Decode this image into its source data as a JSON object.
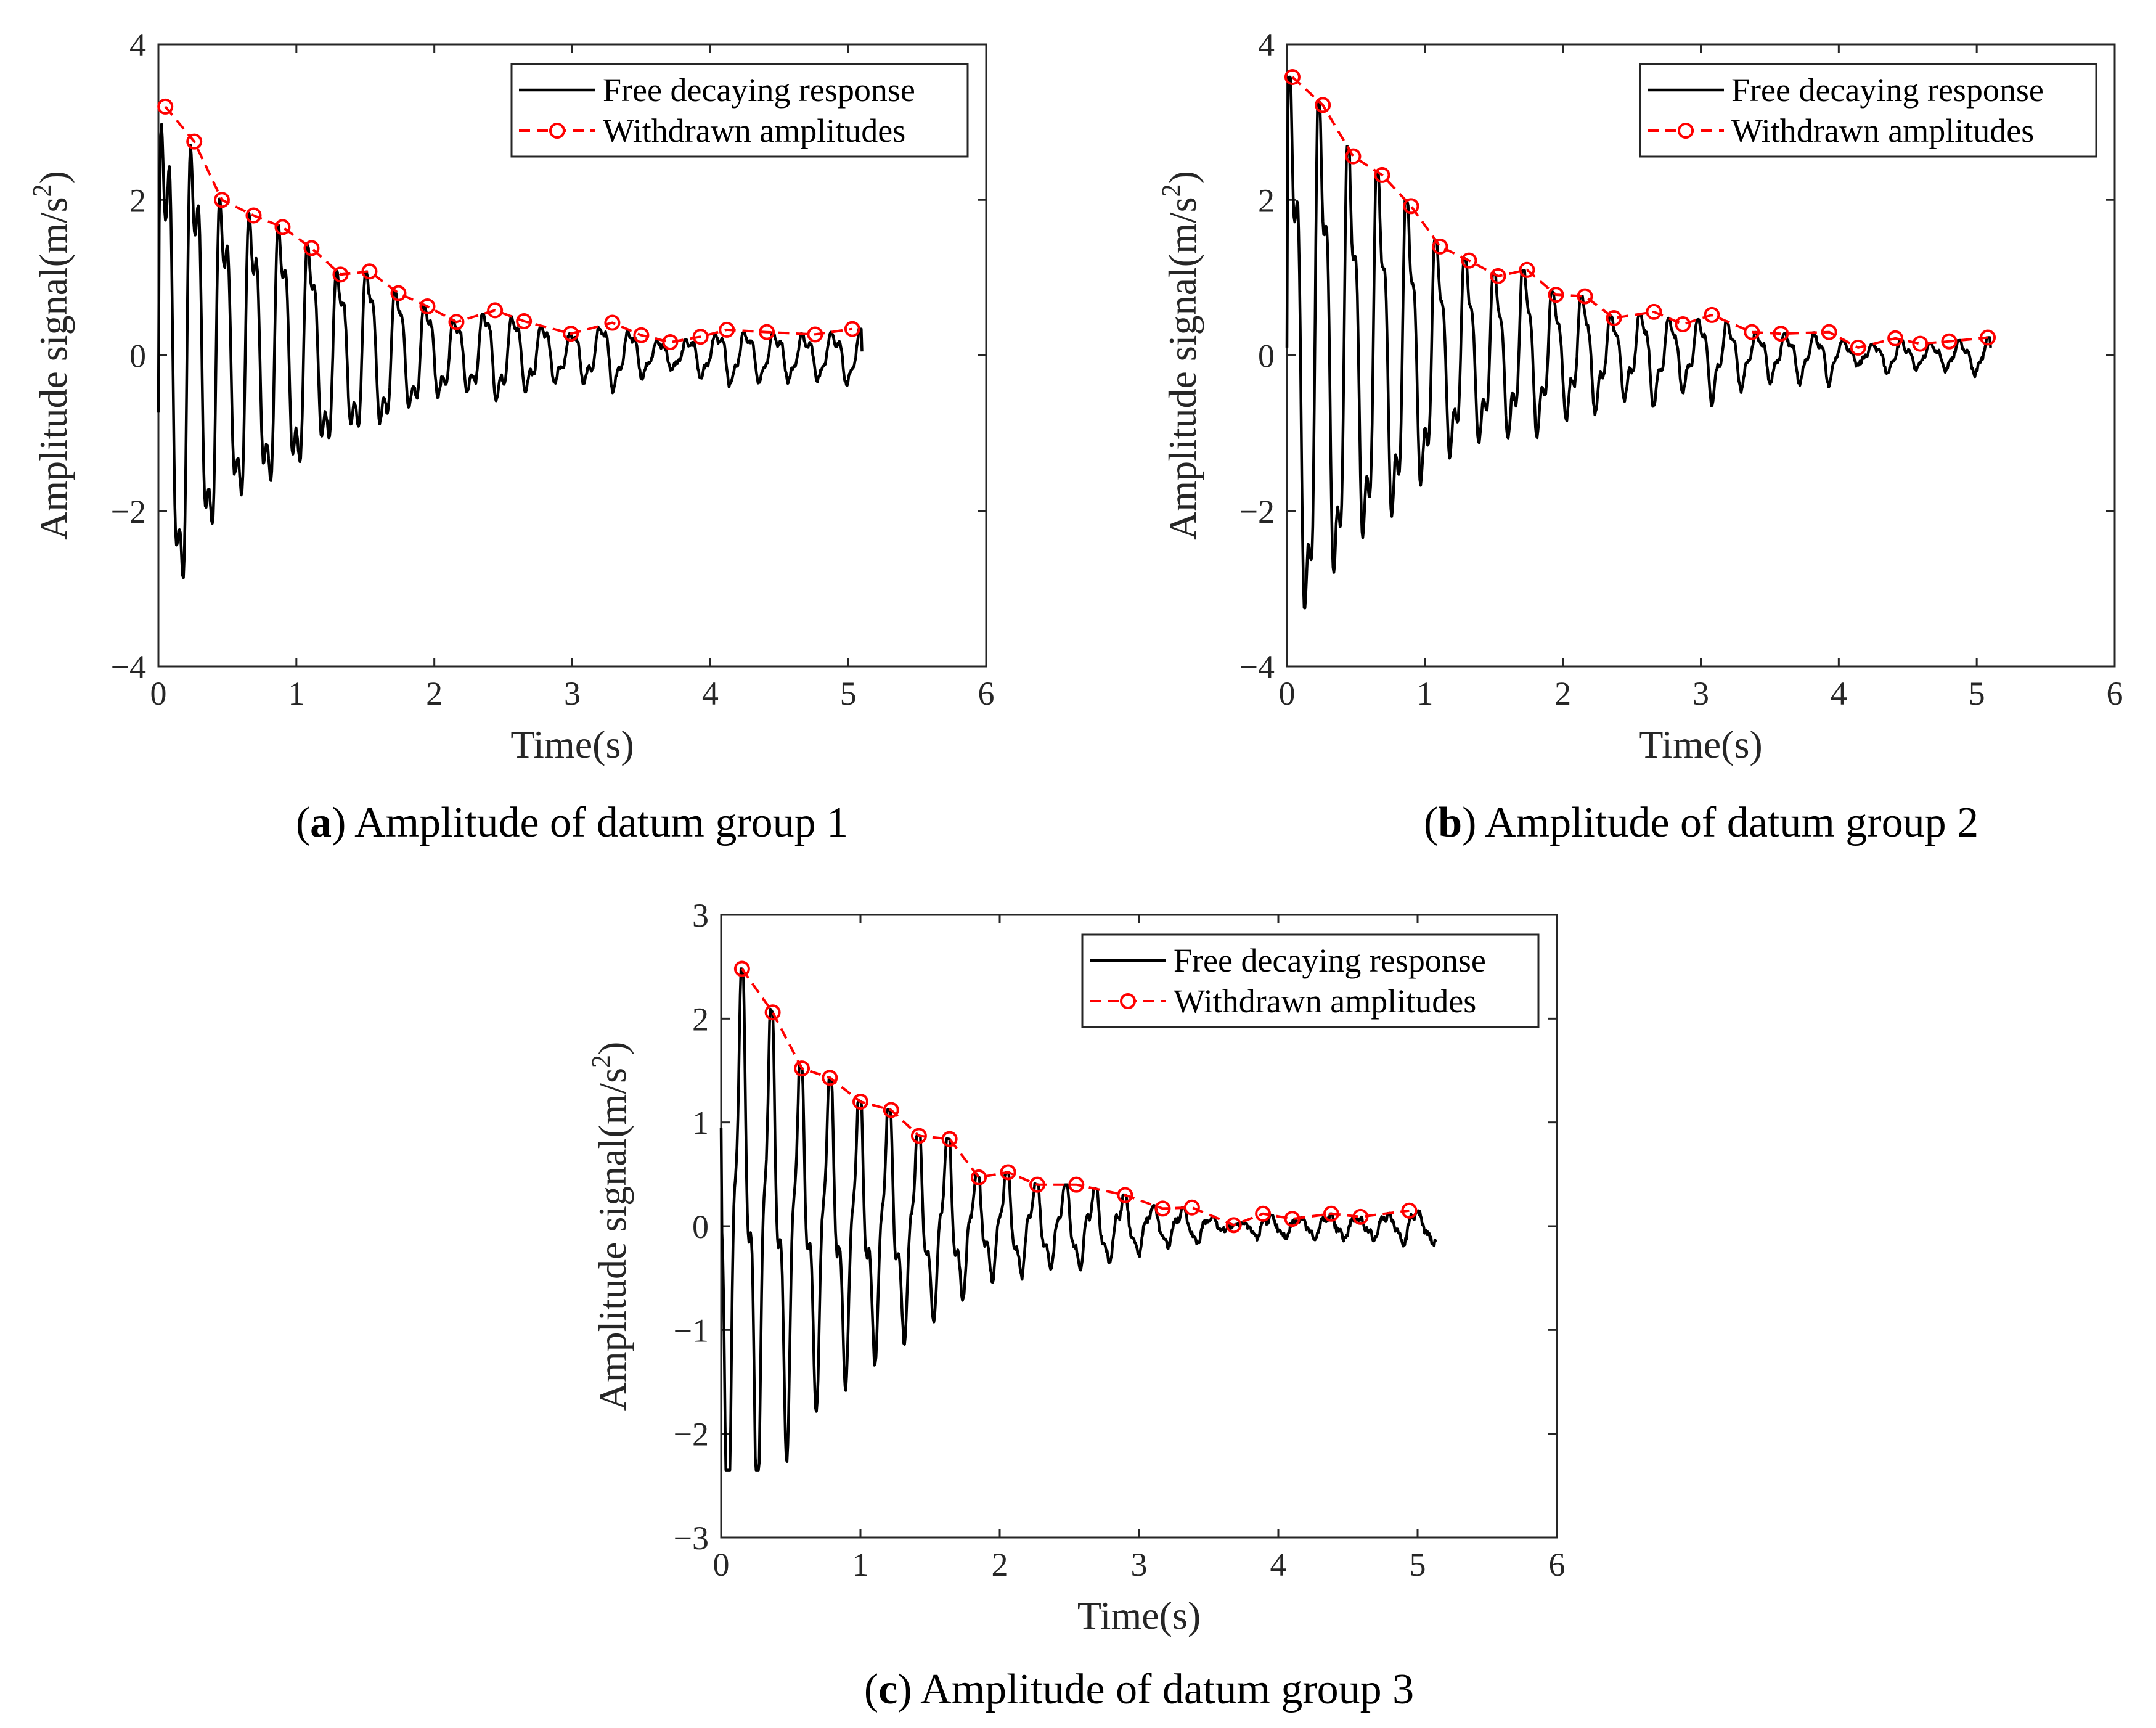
{
  "colors": {
    "response_line": "#000000",
    "amplitude_line": "#ff0000",
    "axis": "#262626",
    "background": "#ffffff"
  },
  "chart_data": [
    {
      "id": "a",
      "type": "line",
      "caption_letter": "a",
      "caption_text": "Amplitude of datum group 1",
      "xlabel": "Time(s)",
      "ylabel": "Amplitude signal(m/s",
      "ylabel_sup": "2",
      "ylabel_end": ")",
      "xlim": [
        0,
        6
      ],
      "ylim": [
        -4,
        4
      ],
      "xticks": [
        0,
        1,
        2,
        3,
        4,
        5,
        6
      ],
      "yticks": [
        -4,
        -2,
        0,
        2,
        4
      ],
      "xtick_labels": [
        "0",
        "1",
        "2",
        "3",
        "4",
        "5",
        "6"
      ],
      "ytick_labels": [
        "−4",
        "−2",
        "0",
        "2",
        "4"
      ],
      "legend": [
        "Free decaying response",
        "Withdrawn amplitudes"
      ],
      "legend_position": "top-right",
      "series": [
        {
          "name": "Withdrawn amplitudes",
          "style": "red dashed with circle markers",
          "x": [
            0.05,
            0.26,
            0.46,
            0.69,
            0.9,
            1.11,
            1.32,
            1.53,
            1.74,
            1.95,
            2.16,
            2.44,
            2.65,
            2.99,
            3.29,
            3.5,
            3.71,
            3.93,
            4.12,
            4.41,
            4.76,
            5.03
          ],
          "y": [
            3.2,
            2.75,
            2.0,
            1.8,
            1.65,
            1.38,
            1.04,
            1.08,
            0.8,
            0.63,
            0.43,
            0.58,
            0.44,
            0.28,
            0.42,
            0.26,
            0.17,
            0.24,
            0.33,
            0.3,
            0.27,
            0.34
          ]
        },
        {
          "name": "Free decaying response",
          "style": "black solid",
          "x_range": [
            0,
            5.1
          ],
          "start_y": -0.7,
          "min_y": -3.05,
          "end_y": 0.05
        }
      ]
    },
    {
      "id": "b",
      "type": "line",
      "caption_letter": "b",
      "caption_text": "Amplitude of datum group 2",
      "xlabel": "Time(s)",
      "ylabel": "Amplitude signal(m/s",
      "ylabel_sup": "2",
      "ylabel_end": ")",
      "xlim": [
        0,
        6
      ],
      "ylim": [
        -4,
        4
      ],
      "xticks": [
        0,
        1,
        2,
        3,
        4,
        5,
        6
      ],
      "yticks": [
        -4,
        -2,
        0,
        2,
        4
      ],
      "xtick_labels": [
        "0",
        "1",
        "2",
        "3",
        "4",
        "5",
        "6"
      ],
      "ytick_labels": [
        "−4",
        "−2",
        "0",
        "2",
        "4"
      ],
      "legend": [
        "Free decaying response",
        "Withdrawn amplitudes"
      ],
      "legend_position": "top-right",
      "series": [
        {
          "name": "Withdrawn amplitudes",
          "style": "red dashed with circle markers",
          "x": [
            0.04,
            0.26,
            0.48,
            0.69,
            0.9,
            1.11,
            1.32,
            1.53,
            1.74,
            1.95,
            2.16,
            2.37,
            2.66,
            2.87,
            3.08,
            3.37,
            3.58,
            3.93,
            4.14,
            4.41,
            4.59,
            4.8,
            5.08
          ],
          "y": [
            3.58,
            3.22,
            2.56,
            2.32,
            1.92,
            1.4,
            1.22,
            1.02,
            1.1,
            0.78,
            0.76,
            0.48,
            0.56,
            0.4,
            0.52,
            0.3,
            0.28,
            0.3,
            0.1,
            0.22,
            0.15,
            0.18,
            0.23
          ]
        },
        {
          "name": "Free decaying response",
          "style": "black solid",
          "x_range": [
            0,
            5.1
          ],
          "start_y": 0.1,
          "min_y": -3.3,
          "end_y": 0.1
        }
      ]
    },
    {
      "id": "c",
      "type": "line",
      "caption_letter": "c",
      "caption_text": "Amplitude of datum group 3",
      "xlabel": "Time(s)",
      "ylabel": "Amplitude signal(m/s",
      "ylabel_sup": "2",
      "ylabel_end": ")",
      "xlim": [
        0,
        6
      ],
      "ylim": [
        -3,
        3
      ],
      "xticks": [
        0,
        1,
        2,
        3,
        4,
        5,
        6
      ],
      "yticks": [
        -3,
        -2,
        -1,
        0,
        1,
        2,
        3
      ],
      "xtick_labels": [
        "0",
        "1",
        "2",
        "3",
        "4",
        "5",
        "6"
      ],
      "ytick_labels": [
        "−3",
        "−2",
        "−1",
        "0",
        "1",
        "2",
        "3"
      ],
      "legend": [
        "Free decaying response",
        "Withdrawn amplitudes"
      ],
      "legend_position": "top-right",
      "series": [
        {
          "name": "Withdrawn amplitudes",
          "style": "red dashed with circle markers",
          "x": [
            0.15,
            0.37,
            0.58,
            0.78,
            1.0,
            1.22,
            1.42,
            1.64,
            1.85,
            2.06,
            2.27,
            2.55,
            2.9,
            3.17,
            3.38,
            3.68,
            3.89,
            4.1,
            4.38,
            4.59,
            4.94
          ],
          "y": [
            2.48,
            2.06,
            1.52,
            1.43,
            1.2,
            1.12,
            0.87,
            0.84,
            0.47,
            0.52,
            0.4,
            0.4,
            0.3,
            0.17,
            0.18,
            0.01,
            0.12,
            0.07,
            0.12,
            0.09,
            0.15
          ]
        },
        {
          "name": "Free decaying response",
          "style": "black solid",
          "x_range": [
            0,
            5.13
          ],
          "start_y": 0.95,
          "min_y": -2.35,
          "end_y": -0.15
        }
      ]
    }
  ]
}
